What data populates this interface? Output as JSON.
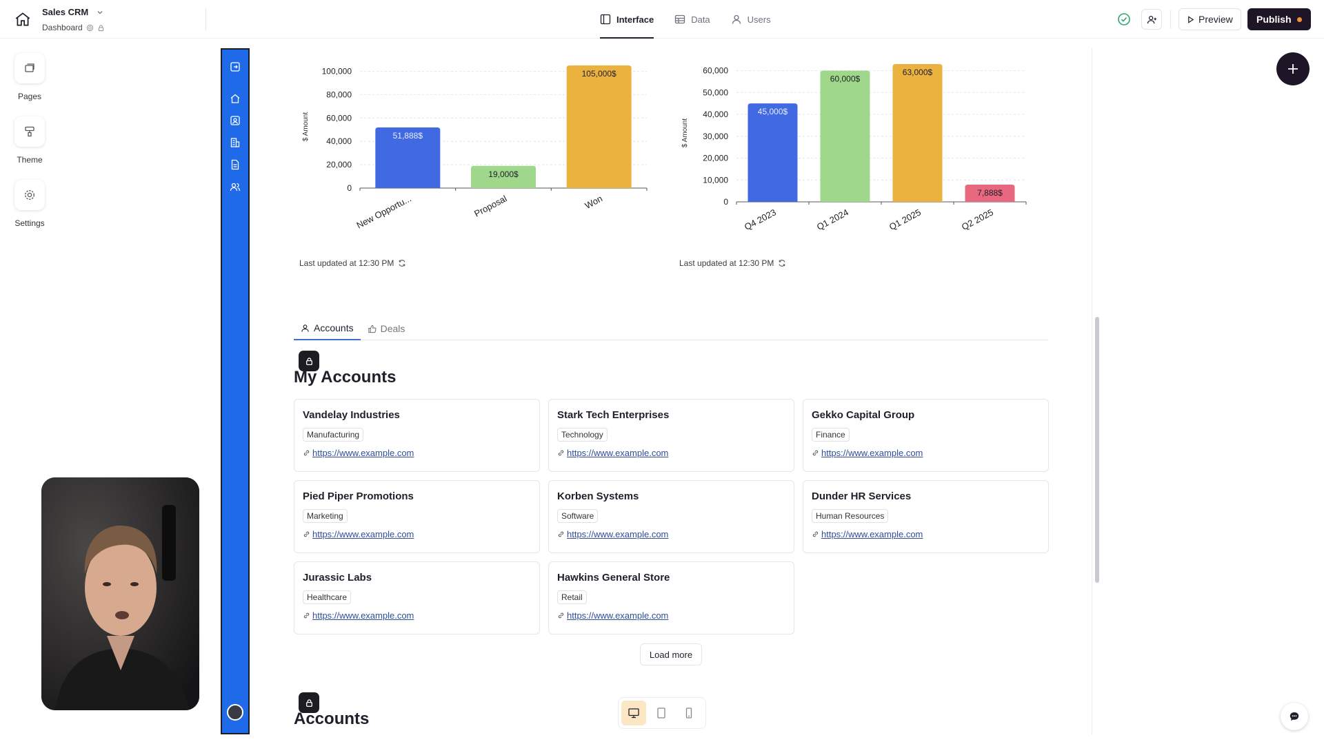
{
  "app": {
    "title": "Sales CRM",
    "page": "Dashboard"
  },
  "nav_tabs": [
    {
      "label": "Interface",
      "icon": "layout-icon",
      "active": true
    },
    {
      "label": "Data",
      "icon": "table-icon",
      "active": false
    },
    {
      "label": "Users",
      "icon": "user-icon",
      "active": false
    }
  ],
  "toolbar": {
    "preview_label": "Preview",
    "publish_label": "Publish"
  },
  "tools": [
    {
      "label": "Pages",
      "icon": "pages-icon"
    },
    {
      "label": "Theme",
      "icon": "paint-roller-icon"
    },
    {
      "label": "Settings",
      "icon": "gear-icon"
    }
  ],
  "chart_data": [
    {
      "type": "bar",
      "categories": [
        "New Opportu...",
        "Proposal",
        "Won"
      ],
      "values": [
        51888,
        19000,
        105000
      ],
      "data_labels": [
        "51,888$",
        "19,000$",
        "105,000$"
      ],
      "colors": [
        "#4169e1",
        "#9fd88a",
        "#ecb23f"
      ],
      "ylabel": "$ Amount",
      "yticks": [
        "0",
        "20,000",
        "40,000",
        "60,000",
        "80,000",
        "100,000"
      ],
      "ylim": [
        0,
        105000
      ],
      "grid": true,
      "updated": "Last updated at 12:30 PM"
    },
    {
      "type": "bar",
      "categories": [
        "Q4 2023",
        "Q1 2024",
        "Q1 2025",
        "Q2 2025"
      ],
      "values": [
        45000,
        60000,
        63000,
        7888
      ],
      "data_labels": [
        "45,000$",
        "60,000$",
        "63,000$",
        "7,888$"
      ],
      "colors": [
        "#4169e1",
        "#9fd88a",
        "#ecb23f",
        "#e8687f"
      ],
      "ylabel": "$ Amount",
      "yticks": [
        "0",
        "10,000",
        "20,000",
        "30,000",
        "40,000",
        "50,000",
        "60,000"
      ],
      "ylim": [
        0,
        63000
      ],
      "grid": true,
      "updated": "Last updated at 12:30 PM"
    }
  ],
  "content_tabs": [
    {
      "label": "Accounts",
      "active": true
    },
    {
      "label": "Deals",
      "active": false
    }
  ],
  "my_accounts": {
    "title": "My Accounts",
    "cards": [
      {
        "name": "Vandelay Industries",
        "tag": "Manufacturing",
        "url": "https://www.example.com"
      },
      {
        "name": "Stark Tech Enterprises",
        "tag": "Technology",
        "url": "https://www.example.com"
      },
      {
        "name": "Gekko Capital Group",
        "tag": "Finance",
        "url": "https://www.example.com"
      },
      {
        "name": "Pied Piper Promotions",
        "tag": "Marketing",
        "url": "https://www.example.com"
      },
      {
        "name": "Korben Systems",
        "tag": "Software",
        "url": "https://www.example.com"
      },
      {
        "name": "Dunder HR Services",
        "tag": "Human Resources",
        "url": "https://www.example.com"
      },
      {
        "name": "Jurassic Labs",
        "tag": "Healthcare",
        "url": "https://www.example.com"
      },
      {
        "name": "Hawkins General Store",
        "tag": "Retail",
        "url": "https://www.example.com"
      }
    ],
    "load_more": "Load more"
  },
  "accounts_section": {
    "title": "Accounts"
  },
  "device_modes": [
    "desktop-icon",
    "tablet-icon",
    "mobile-icon"
  ]
}
